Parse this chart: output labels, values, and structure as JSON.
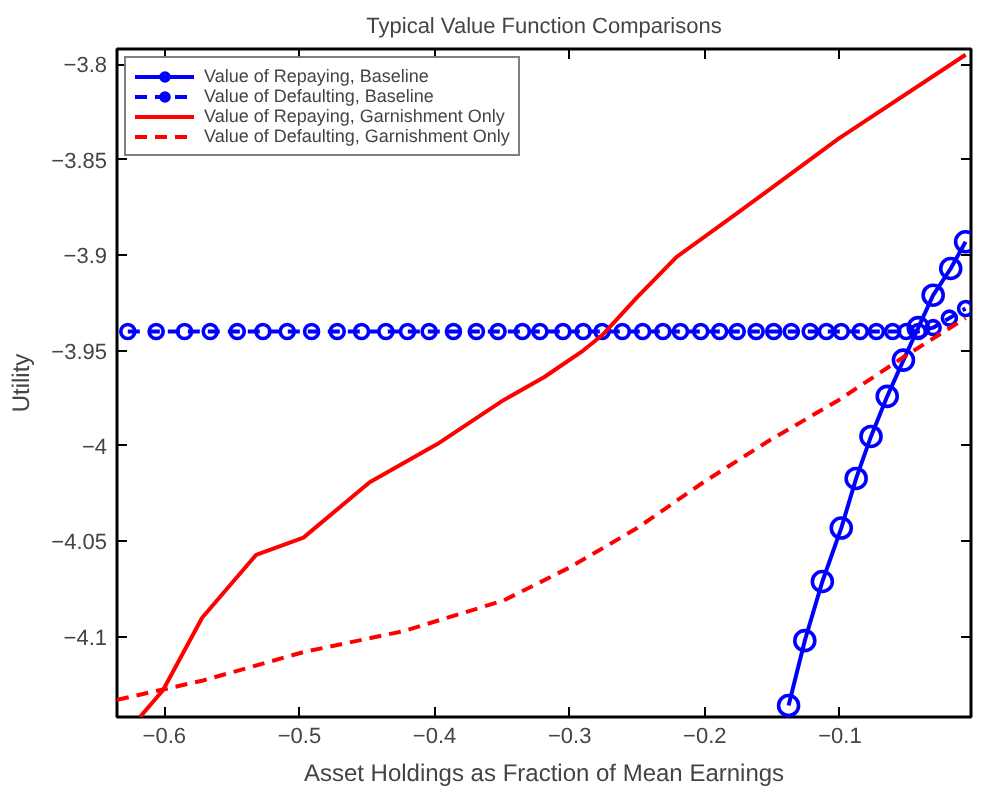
{
  "chart_data": {
    "type": "line",
    "title": "Typical Value Function Comparisons",
    "xlabel": "Asset Holdings as Fraction of Mean Earnings",
    "ylabel": "Utility",
    "xlim": [
      -0.635,
      -0.003
    ],
    "ylim": [
      -4.142,
      -3.792
    ],
    "xticks": [
      -0.6,
      -0.5,
      -0.4,
      -0.3,
      -0.2,
      -0.1
    ],
    "yticks": [
      -4.1,
      -4.05,
      -4,
      -3.95,
      -3.9,
      -3.85,
      -3.8
    ],
    "grid": false,
    "legend": "top left",
    "series": [
      {
        "name": "Value of Repaying, Baseline",
        "color": "#0000ff",
        "marker": "circle",
        "line_style": "solid",
        "x": [
          -0.138,
          -0.126,
          -0.113,
          -0.099,
          -0.088,
          -0.077,
          -0.065,
          -0.053,
          -0.042,
          -0.031,
          -0.018,
          -0.007
        ],
        "values": [
          -4.136,
          -4.102,
          -4.071,
          -4.043,
          -4.017,
          -3.995,
          -3.974,
          -3.955,
          -3.938,
          -3.921,
          -3.907,
          -3.893
        ]
      },
      {
        "name": "Value of Defaulting, Baseline",
        "color": "#0000ff",
        "marker": "circle",
        "line_style": "dashed",
        "x": [
          -0.627,
          -0.606,
          -0.585,
          -0.566,
          -0.546,
          -0.527,
          -0.509,
          -0.491,
          -0.472,
          -0.454,
          -0.436,
          -0.42,
          -0.404,
          -0.386,
          -0.369,
          -0.353,
          -0.335,
          -0.322,
          -0.305,
          -0.29,
          -0.276,
          -0.261,
          -0.246,
          -0.231,
          -0.218,
          -0.203,
          -0.189,
          -0.176,
          -0.162,
          -0.149,
          -0.136,
          -0.122,
          -0.11,
          -0.099,
          -0.085,
          -0.073,
          -0.061,
          -0.051,
          -0.042,
          -0.031,
          -0.019,
          -0.007
        ],
        "values": [
          -3.94,
          -3.94,
          -3.94,
          -3.94,
          -3.94,
          -3.94,
          -3.94,
          -3.94,
          -3.94,
          -3.94,
          -3.94,
          -3.94,
          -3.94,
          -3.94,
          -3.94,
          -3.94,
          -3.94,
          -3.94,
          -3.94,
          -3.94,
          -3.94,
          -3.94,
          -3.94,
          -3.94,
          -3.94,
          -3.94,
          -3.94,
          -3.94,
          -3.94,
          -3.94,
          -3.94,
          -3.94,
          -3.94,
          -3.94,
          -3.94,
          -3.94,
          -3.94,
          -3.94,
          -3.94,
          -3.938,
          -3.933,
          -3.928
        ]
      },
      {
        "name": "Value of Repaying, Garnishment Only",
        "color": "#ff0000",
        "marker": "none",
        "line_style": "solid",
        "x": [
          -0.618,
          -0.601,
          -0.572,
          -0.532,
          -0.497,
          -0.448,
          -0.398,
          -0.349,
          -0.319,
          -0.29,
          -0.276,
          -0.25,
          -0.221,
          -0.176,
          -0.101,
          -0.007
        ],
        "values": [
          -4.142,
          -4.128,
          -4.09,
          -4.057,
          -4.048,
          -4.019,
          -3.999,
          -3.976,
          -3.964,
          -3.95,
          -3.942,
          -3.922,
          -3.901,
          -3.878,
          -3.839,
          -3.795
        ]
      },
      {
        "name": "Value of Defaulting, Garnishment Only",
        "color": "#ff0000",
        "marker": "none",
        "line_style": "dashed",
        "x": [
          -0.635,
          -0.572,
          -0.497,
          -0.423,
          -0.349,
          -0.301,
          -0.25,
          -0.201,
          -0.152,
          -0.101,
          -0.052,
          -0.007
        ],
        "values": [
          -4.133,
          -4.123,
          -4.108,
          -4.097,
          -4.081,
          -4.064,
          -4.043,
          -4.019,
          -3.997,
          -3.976,
          -3.953,
          -3.933
        ]
      }
    ]
  }
}
